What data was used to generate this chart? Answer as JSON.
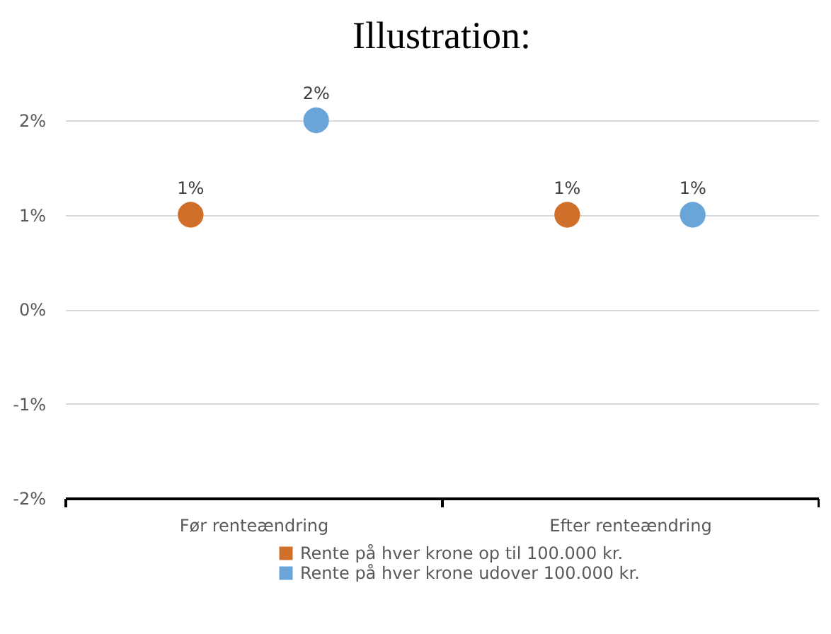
{
  "chart_data": {
    "type": "scatter",
    "title": "Illustration:",
    "categories": [
      "Før renteændring",
      "Efter renteændring"
    ],
    "series": [
      {
        "name": "Rente på hver krone op til 100.000 kr.",
        "color": "#d06f2a",
        "values": [
          1,
          1
        ],
        "value_labels": [
          "1%",
          "1%"
        ]
      },
      {
        "name": "Rente på hver krone udover 100.000 kr.",
        "color": "#69a5d9",
        "values": [
          2,
          1
        ],
        "value_labels": [
          "2%",
          "1%"
        ]
      }
    ],
    "ylim": [
      -2,
      2
    ],
    "yticks": [
      {
        "value": -2,
        "label": "-2%"
      },
      {
        "value": -1,
        "label": "-1%"
      },
      {
        "value": 0,
        "label": "0%"
      },
      {
        "value": 1,
        "label": "1%"
      },
      {
        "value": 2,
        "label": "2%"
      }
    ],
    "grid": true,
    "legend": "bottom",
    "marker": "circle"
  }
}
